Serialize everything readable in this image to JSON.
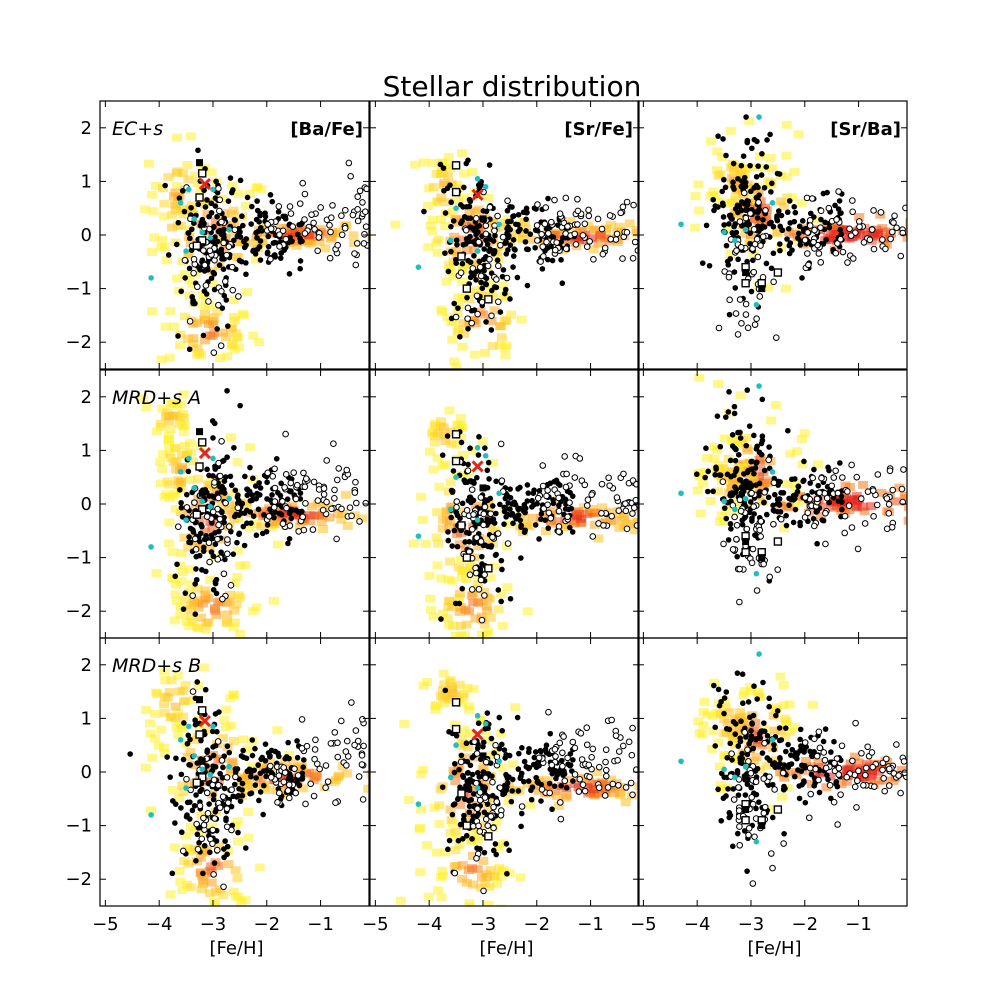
{
  "figure": {
    "title": "Stellar distribution",
    "xlabel": "[Fe/H]"
  },
  "chart_data": {
    "type": "scatter",
    "title": "Stellar distribution",
    "xlabel": "[Fe/H]",
    "xlim": [
      -5.1,
      -0.1
    ],
    "ylim": [
      -2.5,
      2.5
    ],
    "xticks": [
      -5,
      -4,
      -3,
      -2,
      -1
    ],
    "yticks": [
      -2,
      -1,
      0,
      1,
      2
    ],
    "grid": false,
    "rows": [
      "EC+s",
      "MRD+s A",
      "MRD+s B"
    ],
    "columns": [
      "[Ba/Fe]",
      "[Sr/Fe]",
      "[Sr/Ba]"
    ],
    "colors": {
      "obs_filled": "#000000",
      "obs_open": "#000000",
      "obs_cyan": "#1fbfbf",
      "special": "#e8231c",
      "density_low": "#ffee00",
      "density_mid": "#ff9a1a",
      "density_high": "#e8261a"
    },
    "marker_note": "filled circles, open circles, open/filled squares, cyan circles/squares, red cross; background model density shown as yellow-to-red heat map",
    "panels": [
      {
        "row": "EC+s",
        "column": "[Ba/Fe]",
        "column_label": "[Ba/Fe]",
        "row_label": "EC+s",
        "special_star": [
          -3.15,
          0.95
        ],
        "squares_open": [
          [
            -3.2,
            1.15
          ],
          [
            -3.25,
            0.7
          ],
          [
            -3.2,
            -0.1
          ],
          [
            -3.3,
            -0.2
          ]
        ],
        "squares_filled": [
          [
            -3.25,
            1.35
          ],
          [
            -3.2,
            0.2
          ]
        ],
        "cyan": [
          [
            -4.15,
            -0.8
          ],
          [
            -3.6,
            0.6
          ],
          [
            -3.45,
            0.85
          ],
          [
            -3.0,
            0.85
          ],
          [
            -3.35,
            0.3
          ],
          [
            -3.05,
            -0.05
          ],
          [
            -2.7,
            0.1
          ],
          [
            -3.5,
            -0.3
          ],
          [
            -3.2,
            0.05
          ]
        ],
        "density": [
          {
            "x": -3.0,
            "y": 0.0,
            "sx": 0.55,
            "sy": 0.6,
            "w": 1
          },
          {
            "x": -3.1,
            "y": -1.8,
            "sx": 0.45,
            "sy": 0.35,
            "w": 0.8
          },
          {
            "x": -1.5,
            "y": 0.0,
            "sx": 0.65,
            "sy": 0.12,
            "w": 0.9
          },
          {
            "x": -3.65,
            "y": 0.8,
            "sx": 0.3,
            "sy": 0.45,
            "w": 0.5
          }
        ]
      },
      {
        "row": "EC+s",
        "column": "[Sr/Fe]",
        "column_label": "[Sr/Fe]",
        "row_label": "",
        "special_star": [
          -3.1,
          0.75
        ],
        "squares_open": [
          [
            -3.5,
            1.3
          ],
          [
            -3.5,
            0.8
          ],
          [
            -3.4,
            -0.4
          ],
          [
            -3.3,
            -1.0
          ],
          [
            -2.9,
            -1.2
          ]
        ],
        "squares_filled": [
          [
            -3.0,
            0.3
          ]
        ],
        "cyan": [
          [
            -4.2,
            -0.6
          ],
          [
            -3.1,
            1.05
          ],
          [
            -2.95,
            0.9
          ],
          [
            -3.5,
            0.5
          ],
          [
            -3.1,
            -0.3
          ],
          [
            -2.7,
            0.2
          ],
          [
            -3.6,
            -0.1
          ]
        ],
        "density": [
          {
            "x": -3.2,
            "y": 0.0,
            "sx": 0.5,
            "sy": 0.55,
            "w": 1
          },
          {
            "x": -3.0,
            "y": -1.6,
            "sx": 0.4,
            "sy": 0.45,
            "w": 0.8
          },
          {
            "x": -1.2,
            "y": -0.05,
            "sx": 0.7,
            "sy": 0.13,
            "w": 0.9
          },
          {
            "x": -3.7,
            "y": 0.85,
            "sx": 0.25,
            "sy": 0.35,
            "w": 0.45
          }
        ]
      },
      {
        "row": "EC+s",
        "column": "[Sr/Ba]",
        "column_label": "[Sr/Ba]",
        "row_label": "",
        "special_star": null,
        "squares_open": [
          [
            -3.1,
            -0.6
          ],
          [
            -3.1,
            -0.9
          ],
          [
            -2.8,
            -0.9
          ],
          [
            -2.5,
            -0.7
          ]
        ],
        "squares_filled": [
          [
            -3.1,
            -0.7
          ],
          [
            -2.8,
            -1.0
          ]
        ],
        "cyan": [
          [
            -4.3,
            0.2
          ],
          [
            -2.85,
            2.2
          ],
          [
            -2.9,
            -1.3
          ],
          [
            -3.1,
            0.1
          ],
          [
            -2.6,
            0.6
          ],
          [
            -3.3,
            -0.1
          ],
          [
            -3.5,
            0.05
          ]
        ],
        "density": [
          {
            "x": -2.85,
            "y": 0.5,
            "sx": 0.45,
            "sy": 0.6,
            "w": 1
          },
          {
            "x": -1.2,
            "y": 0.0,
            "sx": 0.7,
            "sy": 0.13,
            "w": 0.9
          },
          {
            "x": -3.3,
            "y": 1.0,
            "sx": 0.3,
            "sy": 0.3,
            "w": 0.5
          }
        ]
      },
      {
        "row": "MRD+s A",
        "column": "[Ba/Fe]",
        "column_label": "",
        "row_label": "MRD+s A",
        "special_star": [
          -3.15,
          0.95
        ],
        "squares_open": [
          [
            -3.2,
            1.15
          ],
          [
            -3.25,
            0.7
          ],
          [
            -3.2,
            -0.1
          ],
          [
            -3.3,
            -0.2
          ]
        ],
        "squares_filled": [
          [
            -3.25,
            1.35
          ],
          [
            -3.2,
            0.2
          ]
        ],
        "cyan": [
          [
            -4.15,
            -0.8
          ],
          [
            -3.6,
            0.6
          ],
          [
            -3.45,
            0.85
          ],
          [
            -3.0,
            0.85
          ],
          [
            -3.35,
            0.3
          ],
          [
            -3.05,
            -0.05
          ],
          [
            -2.7,
            0.1
          ],
          [
            -3.5,
            -0.3
          ],
          [
            -3.2,
            0.05
          ]
        ],
        "density": [
          {
            "x": -3.1,
            "y": -0.3,
            "sx": 0.5,
            "sy": 0.65,
            "w": 1
          },
          {
            "x": -3.0,
            "y": -1.9,
            "sx": 0.45,
            "sy": 0.35,
            "w": 0.8
          },
          {
            "x": -1.5,
            "y": -0.2,
            "sx": 0.7,
            "sy": 0.15,
            "w": 0.9
          },
          {
            "x": -3.8,
            "y": 1.6,
            "sx": 0.25,
            "sy": 0.15,
            "w": 0.4
          },
          {
            "x": -3.6,
            "y": 0.6,
            "sx": 0.25,
            "sy": 0.4,
            "w": 0.45
          }
        ]
      },
      {
        "row": "MRD+s A",
        "column": "[Sr/Fe]",
        "column_label": "",
        "row_label": "",
        "special_star": [
          -3.1,
          0.7
        ],
        "squares_open": [
          [
            -3.5,
            1.3
          ],
          [
            -3.5,
            0.8
          ],
          [
            -3.4,
            -0.4
          ],
          [
            -3.3,
            -1.0
          ],
          [
            -2.9,
            -1.2
          ]
        ],
        "squares_filled": [
          [
            -3.0,
            0.3
          ]
        ],
        "cyan": [
          [
            -4.2,
            -0.6
          ],
          [
            -3.1,
            1.05
          ],
          [
            -2.95,
            0.9
          ],
          [
            -3.5,
            0.5
          ],
          [
            -3.1,
            -0.3
          ],
          [
            -2.7,
            0.2
          ],
          [
            -3.6,
            -0.1
          ]
        ],
        "density": [
          {
            "x": -3.3,
            "y": -0.4,
            "sx": 0.45,
            "sy": 0.7,
            "w": 1
          },
          {
            "x": -3.2,
            "y": -1.9,
            "sx": 0.4,
            "sy": 0.4,
            "w": 0.8
          },
          {
            "x": -1.3,
            "y": -0.25,
            "sx": 0.7,
            "sy": 0.13,
            "w": 0.9
          },
          {
            "x": -3.7,
            "y": 1.3,
            "sx": 0.2,
            "sy": 0.3,
            "w": 0.4
          }
        ]
      },
      {
        "row": "MRD+s A",
        "column": "[Sr/Ba]",
        "column_label": "",
        "row_label": "",
        "special_star": null,
        "squares_open": [
          [
            -3.1,
            -0.6
          ],
          [
            -3.1,
            -0.9
          ],
          [
            -2.8,
            -0.9
          ],
          [
            -2.5,
            -0.7
          ]
        ],
        "squares_filled": [
          [
            -3.1,
            -0.7
          ],
          [
            -2.8,
            -1.0
          ]
        ],
        "cyan": [
          [
            -4.3,
            0.2
          ],
          [
            -2.85,
            2.2
          ],
          [
            -2.9,
            -1.3
          ],
          [
            -3.1,
            0.1
          ],
          [
            -2.6,
            0.6
          ],
          [
            -3.3,
            -0.1
          ],
          [
            -3.5,
            0.05
          ]
        ],
        "density": [
          {
            "x": -2.9,
            "y": 0.6,
            "sx": 0.45,
            "sy": 0.55,
            "w": 1
          },
          {
            "x": -1.1,
            "y": 0.05,
            "sx": 0.7,
            "sy": 0.13,
            "w": 0.9
          },
          {
            "x": -3.4,
            "y": 0.4,
            "sx": 0.25,
            "sy": 0.3,
            "w": 0.5
          }
        ]
      },
      {
        "row": "MRD+s B",
        "column": "[Ba/Fe]",
        "column_label": "",
        "row_label": "MRD+s B",
        "special_star": [
          -3.15,
          0.95
        ],
        "squares_open": [
          [
            -3.2,
            1.15
          ],
          [
            -3.25,
            0.7
          ],
          [
            -3.2,
            -0.1
          ],
          [
            -3.3,
            -0.2
          ]
        ],
        "squares_filled": [
          [
            -3.25,
            1.35
          ],
          [
            -3.2,
            0.2
          ]
        ],
        "cyan": [
          [
            -4.15,
            -0.8
          ],
          [
            -3.6,
            0.6
          ],
          [
            -3.45,
            0.85
          ],
          [
            -3.0,
            0.85
          ],
          [
            -3.35,
            0.3
          ],
          [
            -3.05,
            -0.05
          ],
          [
            -2.7,
            0.1
          ],
          [
            -3.5,
            -0.3
          ],
          [
            -3.2,
            0.05
          ]
        ],
        "density": [
          {
            "x": -3.0,
            "y": 0.0,
            "sx": 0.55,
            "sy": 0.65,
            "w": 1
          },
          {
            "x": -3.0,
            "y": -1.8,
            "sx": 0.45,
            "sy": 0.45,
            "w": 0.85
          },
          {
            "x": -1.6,
            "y": -0.1,
            "sx": 0.65,
            "sy": 0.15,
            "w": 0.9
          },
          {
            "x": -3.7,
            "y": 1.3,
            "sx": 0.3,
            "sy": 0.35,
            "w": 0.45
          }
        ]
      },
      {
        "row": "MRD+s B",
        "column": "[Sr/Fe]",
        "column_label": "",
        "row_label": "",
        "special_star": [
          -3.1,
          0.7
        ],
        "squares_open": [
          [
            -3.5,
            1.3
          ],
          [
            -3.5,
            0.8
          ],
          [
            -3.4,
            -0.4
          ],
          [
            -3.3,
            -1.0
          ],
          [
            -2.9,
            -1.2
          ]
        ],
        "squares_filled": [
          [
            -3.0,
            0.3
          ]
        ],
        "cyan": [
          [
            -4.2,
            -0.6
          ],
          [
            -3.1,
            1.05
          ],
          [
            -2.95,
            0.9
          ],
          [
            -3.5,
            0.5
          ],
          [
            -3.1,
            -0.3
          ],
          [
            -2.7,
            0.2
          ],
          [
            -3.6,
            -0.1
          ]
        ],
        "density": [
          {
            "x": -3.3,
            "y": -0.3,
            "sx": 0.45,
            "sy": 0.75,
            "w": 1
          },
          {
            "x": -3.2,
            "y": -1.8,
            "sx": 0.4,
            "sy": 0.4,
            "w": 0.75
          },
          {
            "x": -1.2,
            "y": -0.3,
            "sx": 0.75,
            "sy": 0.14,
            "w": 0.9
          },
          {
            "x": -3.6,
            "y": 1.5,
            "sx": 0.25,
            "sy": 0.2,
            "w": 0.4
          }
        ]
      },
      {
        "row": "MRD+s B",
        "column": "[Sr/Ba]",
        "column_label": "",
        "row_label": "",
        "special_star": null,
        "squares_open": [
          [
            -3.1,
            -0.6
          ],
          [
            -3.1,
            -0.9
          ],
          [
            -2.8,
            -0.9
          ],
          [
            -2.5,
            -0.7
          ]
        ],
        "squares_filled": [
          [
            -3.1,
            -0.7
          ],
          [
            -2.8,
            -1.0
          ]
        ],
        "cyan": [
          [
            -4.3,
            0.2
          ],
          [
            -2.85,
            2.2
          ],
          [
            -2.9,
            -1.3
          ],
          [
            -3.1,
            0.1
          ],
          [
            -2.6,
            0.6
          ],
          [
            -3.3,
            -0.1
          ],
          [
            -3.5,
            0.05
          ]
        ],
        "density": [
          {
            "x": -2.85,
            "y": 0.7,
            "sx": 0.4,
            "sy": 0.55,
            "w": 1
          },
          {
            "x": -1.1,
            "y": 0.0,
            "sx": 0.7,
            "sy": 0.14,
            "w": 0.9
          },
          {
            "x": -3.3,
            "y": 0.9,
            "sx": 0.3,
            "sy": 0.35,
            "w": 0.5
          }
        ]
      }
    ]
  }
}
